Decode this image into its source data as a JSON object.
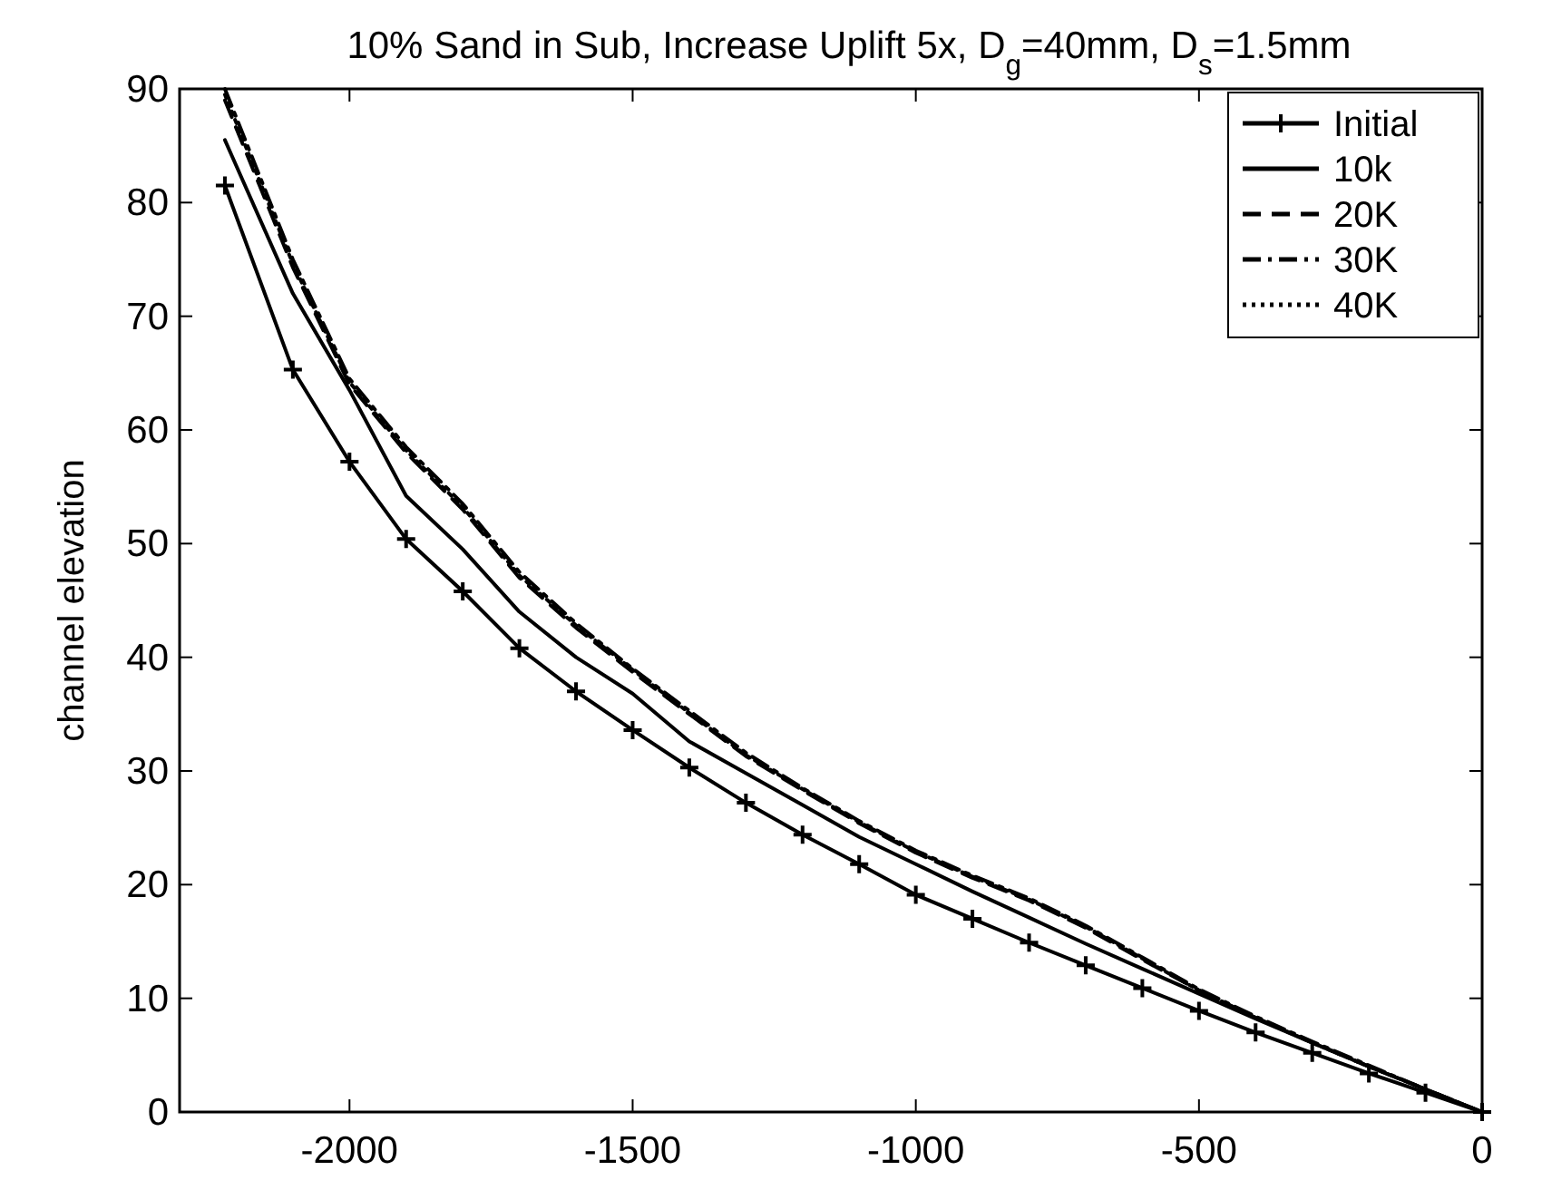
{
  "chart_data": {
    "type": "line",
    "title": "10% Sand in Sub, Increase Uplift 5x, D$_{g}$=40mm, D$_{s}$=1.5mm",
    "ylabel": "channel elevation",
    "x": [
      -2220,
      -2100,
      -2000,
      -1900,
      -1800,
      -1700,
      -1600,
      -1500,
      -1400,
      -1300,
      -1200,
      -1100,
      -1000,
      -900,
      -800,
      -700,
      -600,
      -500,
      -400,
      -300,
      -200,
      -100,
      0
    ],
    "series": [
      {
        "name": "Initial",
        "color": "#000000",
        "marker": "cross",
        "line_style": "solid",
        "values": [
          81.5,
          65.3,
          57.2,
          50.4,
          45.8,
          40.8,
          37.0,
          33.6,
          30.3,
          27.2,
          24.4,
          21.8,
          19.1,
          17.0,
          14.9,
          12.9,
          10.9,
          8.9,
          7.0,
          5.2,
          3.4,
          1.7,
          0
        ]
      },
      {
        "name": "10k",
        "color": "#000000",
        "marker": "none",
        "line_style": "solid",
        "values": [
          85.5,
          72,
          63.5,
          54.2,
          49.5,
          44,
          40,
          36.8,
          32.6,
          29.8,
          27.0,
          24.2,
          21.8,
          19.4,
          17.1,
          14.8,
          12.6,
          10.4,
          8.2,
          6.1,
          4.0,
          2.0,
          0
        ]
      },
      {
        "name": "20K",
        "color": "#000000",
        "marker": "none",
        "line_style": "dashed",
        "values": [
          89,
          74.3,
          64,
          58,
          53,
          47,
          42.6,
          38.7,
          35,
          31.3,
          28.3,
          25.4,
          22.8,
          20.6,
          18.6,
          16.2,
          13.4,
          10.7,
          8.3,
          6.1,
          4.0,
          2.0,
          0
        ]
      },
      {
        "name": "30K",
        "color": "#000000",
        "marker": "none",
        "line_style": "dashdot",
        "values": [
          90,
          75,
          64.5,
          58.5,
          53.5,
          47.5,
          43,
          39,
          35.3,
          31.6,
          28.5,
          25.6,
          23.0,
          20.8,
          18.8,
          16.4,
          13.6,
          10.8,
          8.4,
          6.2,
          4.1,
          2.0,
          0
        ]
      },
      {
        "name": "40K",
        "color": "#000000",
        "marker": "none",
        "line_style": "dotted",
        "values": [
          89.5,
          74.6,
          64.2,
          58.2,
          53.2,
          47.2,
          42.8,
          38.9,
          35.1,
          31.4,
          28.4,
          25.5,
          22.9,
          20.7,
          18.7,
          16.3,
          13.5,
          10.7,
          8.3,
          6.1,
          4.0,
          2.0,
          0
        ]
      }
    ],
    "xlim": [
      -2300,
      0
    ],
    "xticks": [
      -2000,
      -1500,
      -1000,
      -500,
      0
    ],
    "ylim": [
      0,
      90
    ],
    "yticks": [
      0,
      10,
      20,
      30,
      40,
      50,
      60,
      70,
      80,
      90
    ],
    "grid": false,
    "legend": "top right"
  }
}
